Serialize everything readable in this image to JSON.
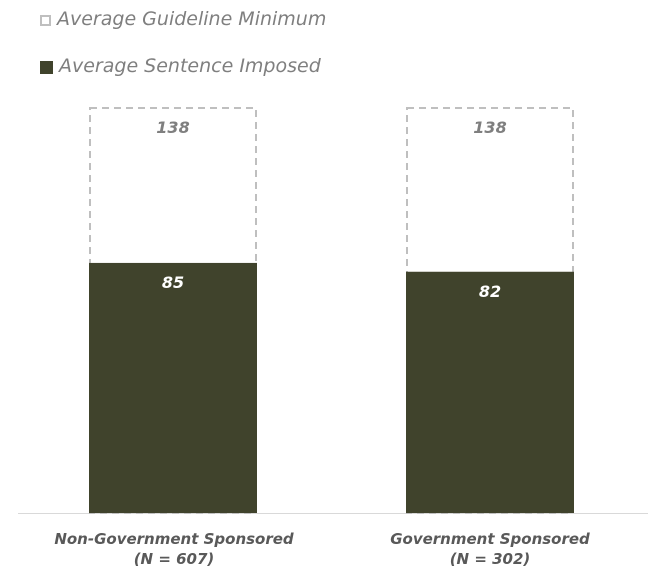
{
  "chart_data": {
    "type": "bar",
    "categories": [
      "Non-Government Sponsored",
      "Government Sponsored"
    ],
    "category_sublabels": [
      "(N = 607)",
      "(N = 302)"
    ],
    "series": [
      {
        "name": "Average Guideline Minimum",
        "values": [
          138,
          138
        ],
        "style": "dashed-outline",
        "color": "#bfbfbf"
      },
      {
        "name": "Average Sentence Imposed",
        "values": [
          85,
          82
        ],
        "style": "solid",
        "color": "#40432c"
      }
    ],
    "ylim": [
      0,
      150
    ],
    "grid": false,
    "legend_position": "top-left",
    "label_colors": {
      "outline": "#7f7f7f",
      "solid": "#ffffff"
    }
  }
}
